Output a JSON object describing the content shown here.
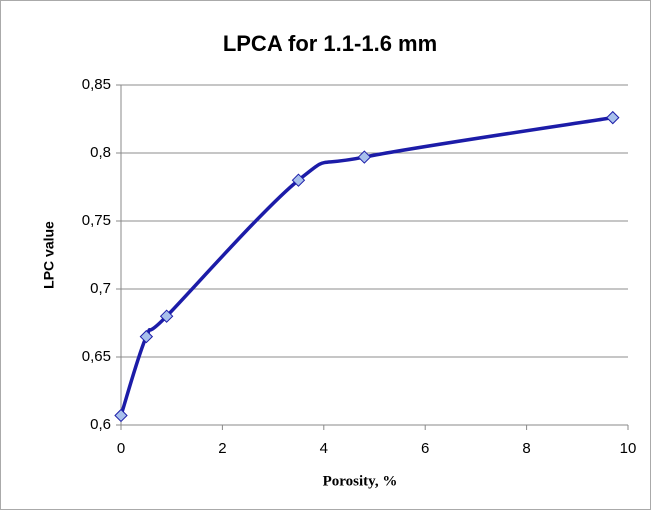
{
  "chart_data": {
    "type": "line",
    "title": "LPCA for 1.1-1.6 mm",
    "x_label": "Porosity, %",
    "y_label": "LPC value",
    "x": [
      0,
      0.5,
      0.9,
      3.5,
      4.8,
      9.7
    ],
    "series": [
      {
        "name": "LPCA",
        "color": "#1c1ca8",
        "values": [
          0.607,
          0.665,
          0.68,
          0.78,
          0.797,
          0.826
        ]
      }
    ],
    "marker_color": "#a8c0ec",
    "xlim": [
      0,
      10
    ],
    "xticks": [
      0,
      2,
      4,
      6,
      8,
      10
    ],
    "ylim": [
      0.6,
      0.85
    ],
    "yticks": [
      {
        "value": 0.6,
        "label": "0,6"
      },
      {
        "value": 0.65,
        "label": "0,65"
      },
      {
        "value": 0.7,
        "label": "0,7"
      },
      {
        "value": 0.75,
        "label": "0,75"
      },
      {
        "value": 0.8,
        "label": "0,8"
      },
      {
        "value": 0.85,
        "label": "0,85"
      }
    ],
    "grid": true
  }
}
